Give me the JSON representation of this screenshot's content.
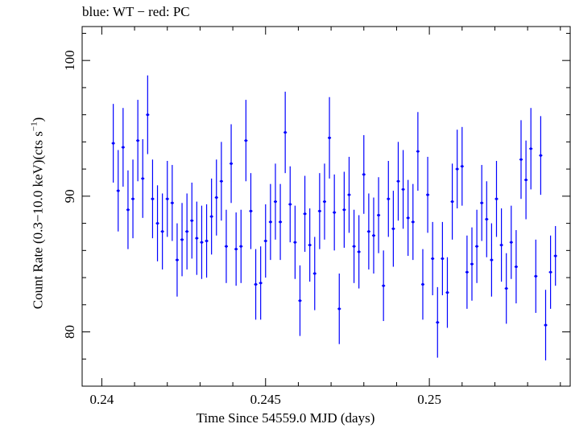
{
  "chart_data": {
    "type": "scatter",
    "title": "blue: WT − red: PC",
    "xlabel": "Time Since 54559.0 MJD (days)",
    "ylabel_prefix": "Count Rate (0.3−10.0 keV)(cts s",
    "ylabel_sup": "−1",
    "ylabel_suffix": ")",
    "xlim": [
      0.2394,
      0.2543
    ],
    "ylim": [
      76.0,
      102.5
    ],
    "xticks": [
      0.24,
      0.245,
      0.25
    ],
    "xtick_labels": [
      "0.24",
      "0.245",
      "0.25"
    ],
    "yticks": [
      80,
      90,
      100
    ],
    "ytick_labels": [
      "80",
      "90",
      "100"
    ],
    "series": [
      {
        "color": "#0000ff",
        "x_err": 5e-05,
        "points": [
          [
            0.24035,
            93.9,
            2.9
          ],
          [
            0.2405,
            90.4,
            3.0
          ],
          [
            0.24065,
            93.6,
            2.9
          ],
          [
            0.2408,
            89.0,
            2.9
          ],
          [
            0.24095,
            89.8,
            2.9
          ],
          [
            0.2411,
            94.1,
            3.0
          ],
          [
            0.24125,
            91.3,
            2.9
          ],
          [
            0.2414,
            96.0,
            2.9
          ],
          [
            0.24155,
            89.8,
            2.9
          ],
          [
            0.2417,
            88.0,
            2.8
          ],
          [
            0.24185,
            87.4,
            2.8
          ],
          [
            0.242,
            89.8,
            2.8
          ],
          [
            0.24215,
            89.5,
            2.8
          ],
          [
            0.2423,
            85.3,
            2.7
          ],
          [
            0.24245,
            86.8,
            2.7
          ],
          [
            0.2426,
            87.4,
            2.8
          ],
          [
            0.24275,
            88.2,
            2.8
          ],
          [
            0.2429,
            86.9,
            2.7
          ],
          [
            0.24305,
            86.6,
            2.7
          ],
          [
            0.2432,
            86.7,
            2.7
          ],
          [
            0.24335,
            88.5,
            2.8
          ],
          [
            0.2435,
            89.9,
            2.8
          ],
          [
            0.24365,
            91.1,
            2.9
          ],
          [
            0.2438,
            86.3,
            2.7
          ],
          [
            0.24395,
            92.4,
            2.9
          ],
          [
            0.2441,
            86.1,
            2.7
          ],
          [
            0.24425,
            86.3,
            2.7
          ],
          [
            0.2444,
            94.1,
            3.0
          ],
          [
            0.24455,
            88.9,
            2.8
          ],
          [
            0.2447,
            83.5,
            2.6
          ],
          [
            0.24485,
            83.6,
            2.7
          ],
          [
            0.245,
            86.7,
            2.7
          ],
          [
            0.24515,
            88.1,
            2.8
          ],
          [
            0.2453,
            89.6,
            2.8
          ],
          [
            0.24545,
            88.1,
            2.8
          ],
          [
            0.2456,
            94.7,
            3.0
          ],
          [
            0.24575,
            89.4,
            2.8
          ],
          [
            0.2459,
            86.6,
            2.7
          ],
          [
            0.24605,
            82.3,
            2.6
          ],
          [
            0.2462,
            88.7,
            2.8
          ],
          [
            0.24635,
            86.4,
            2.7
          ],
          [
            0.2465,
            84.3,
            2.7
          ],
          [
            0.24665,
            88.9,
            2.8
          ],
          [
            0.2468,
            89.6,
            2.8
          ],
          [
            0.24695,
            94.3,
            3.0
          ],
          [
            0.2471,
            88.8,
            2.8
          ],
          [
            0.24725,
            81.7,
            2.6
          ],
          [
            0.2474,
            89.0,
            2.8
          ],
          [
            0.24755,
            90.1,
            2.8
          ],
          [
            0.2477,
            86.3,
            2.7
          ],
          [
            0.24785,
            85.9,
            2.7
          ],
          [
            0.248,
            91.6,
            2.9
          ],
          [
            0.24815,
            87.4,
            2.8
          ],
          [
            0.2483,
            87.1,
            2.8
          ],
          [
            0.24845,
            88.6,
            2.8
          ],
          [
            0.2486,
            83.4,
            2.6
          ],
          [
            0.24875,
            89.8,
            2.8
          ],
          [
            0.2489,
            87.6,
            2.8
          ],
          [
            0.24905,
            91.1,
            2.9
          ],
          [
            0.2492,
            90.5,
            2.9
          ],
          [
            0.24935,
            88.4,
            2.8
          ],
          [
            0.2495,
            88.1,
            2.8
          ],
          [
            0.24965,
            93.3,
            2.9
          ],
          [
            0.2498,
            83.5,
            2.6
          ],
          [
            0.24995,
            90.1,
            2.8
          ],
          [
            0.2501,
            85.4,
            2.7
          ],
          [
            0.25025,
            80.7,
            2.6
          ],
          [
            0.2504,
            85.4,
            2.7
          ],
          [
            0.25055,
            82.9,
            2.6
          ],
          [
            0.2507,
            89.6,
            2.8
          ],
          [
            0.25085,
            92.0,
            2.9
          ],
          [
            0.251,
            92.2,
            2.9
          ],
          [
            0.25115,
            84.4,
            2.7
          ],
          [
            0.2513,
            85.0,
            2.7
          ],
          [
            0.25145,
            86.3,
            2.7
          ],
          [
            0.2516,
            89.5,
            2.8
          ],
          [
            0.25175,
            88.3,
            2.8
          ],
          [
            0.2519,
            85.3,
            2.7
          ],
          [
            0.25205,
            89.8,
            2.8
          ],
          [
            0.2522,
            86.4,
            2.7
          ],
          [
            0.25235,
            83.2,
            2.6
          ],
          [
            0.2525,
            86.6,
            2.7
          ],
          [
            0.25265,
            84.8,
            2.7
          ],
          [
            0.2528,
            92.7,
            2.9
          ],
          [
            0.25295,
            91.2,
            2.9
          ],
          [
            0.2531,
            93.5,
            3.0
          ],
          [
            0.25325,
            84.1,
            2.7
          ],
          [
            0.2534,
            93.0,
            2.9
          ],
          [
            0.25355,
            80.5,
            2.6
          ],
          [
            0.2537,
            84.4,
            2.7
          ],
          [
            0.25385,
            85.6,
            2.2
          ]
        ]
      }
    ]
  }
}
